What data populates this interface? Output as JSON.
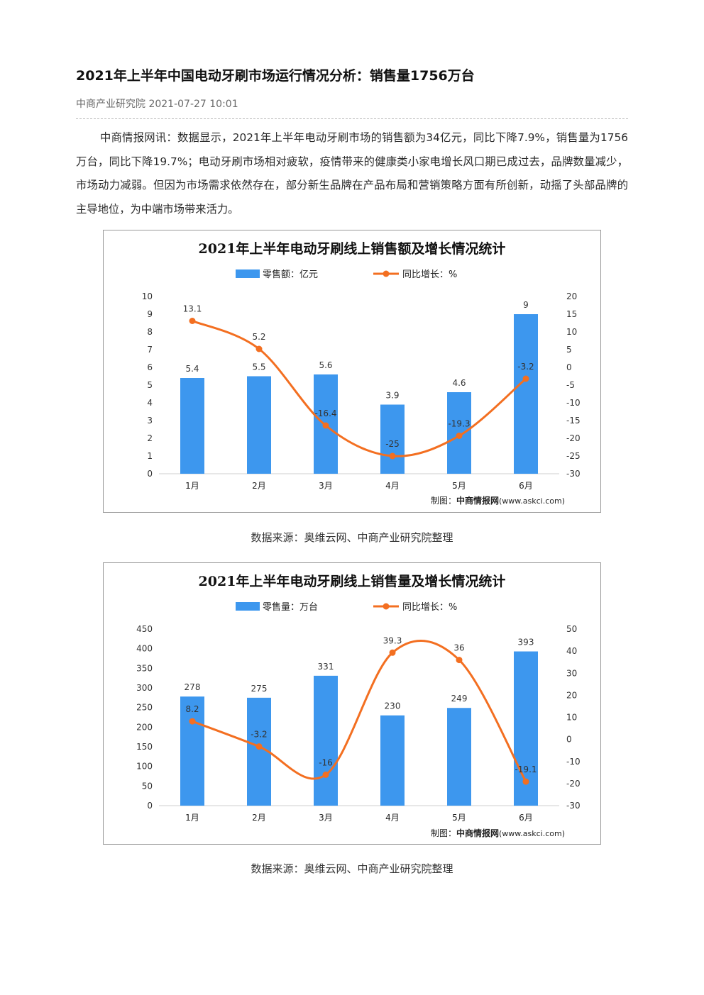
{
  "article": {
    "title": "2021年上半年中国电动牙刷市场运行情况分析：销售量1756万台",
    "source": "中商产业研究院",
    "datetime": "2021-07-27 10:01",
    "paragraph": "中商情报网讯：数据显示，2021年上半年电动牙刷市场的销售额为34亿元，同比下降7.9%，销售量为1756万台，同比下降19.7%；电动牙刷市场相对疲软，疫情带来的健康类小家电增长风口期已成过去，品牌数量减少，市场动力减弱。但因为市场需求依然存在，部分新生品牌在产品布局和营销策略方面有所创新，动摇了头部品牌的主导地位，为中端市场带来活力。"
  },
  "colors": {
    "bar": "#3d97ee",
    "line": "#f36f21",
    "title": "#111111"
  },
  "chart_data": [
    {
      "type": "bar",
      "title": "2021年上半年电动牙刷线上销售额及增长情况统计",
      "categories": [
        "1月",
        "2月",
        "3月",
        "4月",
        "5月",
        "6月"
      ],
      "series": [
        {
          "name": "零售额：亿元",
          "axis": "left",
          "values": [
            5.4,
            5.5,
            5.6,
            3.9,
            4.6,
            9
          ],
          "labels": [
            "5.4",
            "5.5",
            "5.6",
            "3.9",
            "4.6",
            "9"
          ]
        },
        {
          "name": "同比增长：%",
          "axis": "right",
          "kind": "line",
          "values": [
            13.1,
            5.2,
            -16.4,
            -25,
            -19.3,
            -3.2
          ],
          "labels": [
            "13.1",
            "5.2",
            "-16.4",
            "-25",
            "-19.3",
            "-3.2"
          ]
        }
      ],
      "yleft": {
        "min": 0,
        "max": 10,
        "step": 1
      },
      "yright": {
        "min": -30,
        "max": 20,
        "step": 5
      },
      "legend_position": "top",
      "credit_prefix": "制图：",
      "credit_brand": "中商情报网",
      "credit_url": "(www.askci.com)",
      "source_note": "数据来源：奥维云网、中商产业研究院整理"
    },
    {
      "type": "bar",
      "title": "2021年上半年电动牙刷线上销售量及增长情况统计",
      "categories": [
        "1月",
        "2月",
        "3月",
        "4月",
        "5月",
        "6月"
      ],
      "series": [
        {
          "name": "零售量：万台",
          "axis": "left",
          "values": [
            278,
            275,
            331,
            230,
            249,
            393
          ],
          "labels": [
            "278",
            "275",
            "331",
            "230",
            "249",
            "393"
          ]
        },
        {
          "name": "同比增长：%",
          "axis": "right",
          "kind": "line",
          "values": [
            8.2,
            -3.2,
            -16,
            39.3,
            36,
            -19.1
          ],
          "labels": [
            "8.2",
            "-3.2",
            "-16",
            "39.3",
            "36",
            "-19.1"
          ]
        }
      ],
      "yleft": {
        "min": 0,
        "max": 450,
        "step": 50
      },
      "yright": {
        "min": -30,
        "max": 50,
        "step": 10
      },
      "legend_position": "top",
      "credit_prefix": "制图：",
      "credit_brand": "中商情报网",
      "credit_url": "(www.askci.com)",
      "source_note": "数据来源：奥维云网、中商产业研究院整理"
    }
  ]
}
